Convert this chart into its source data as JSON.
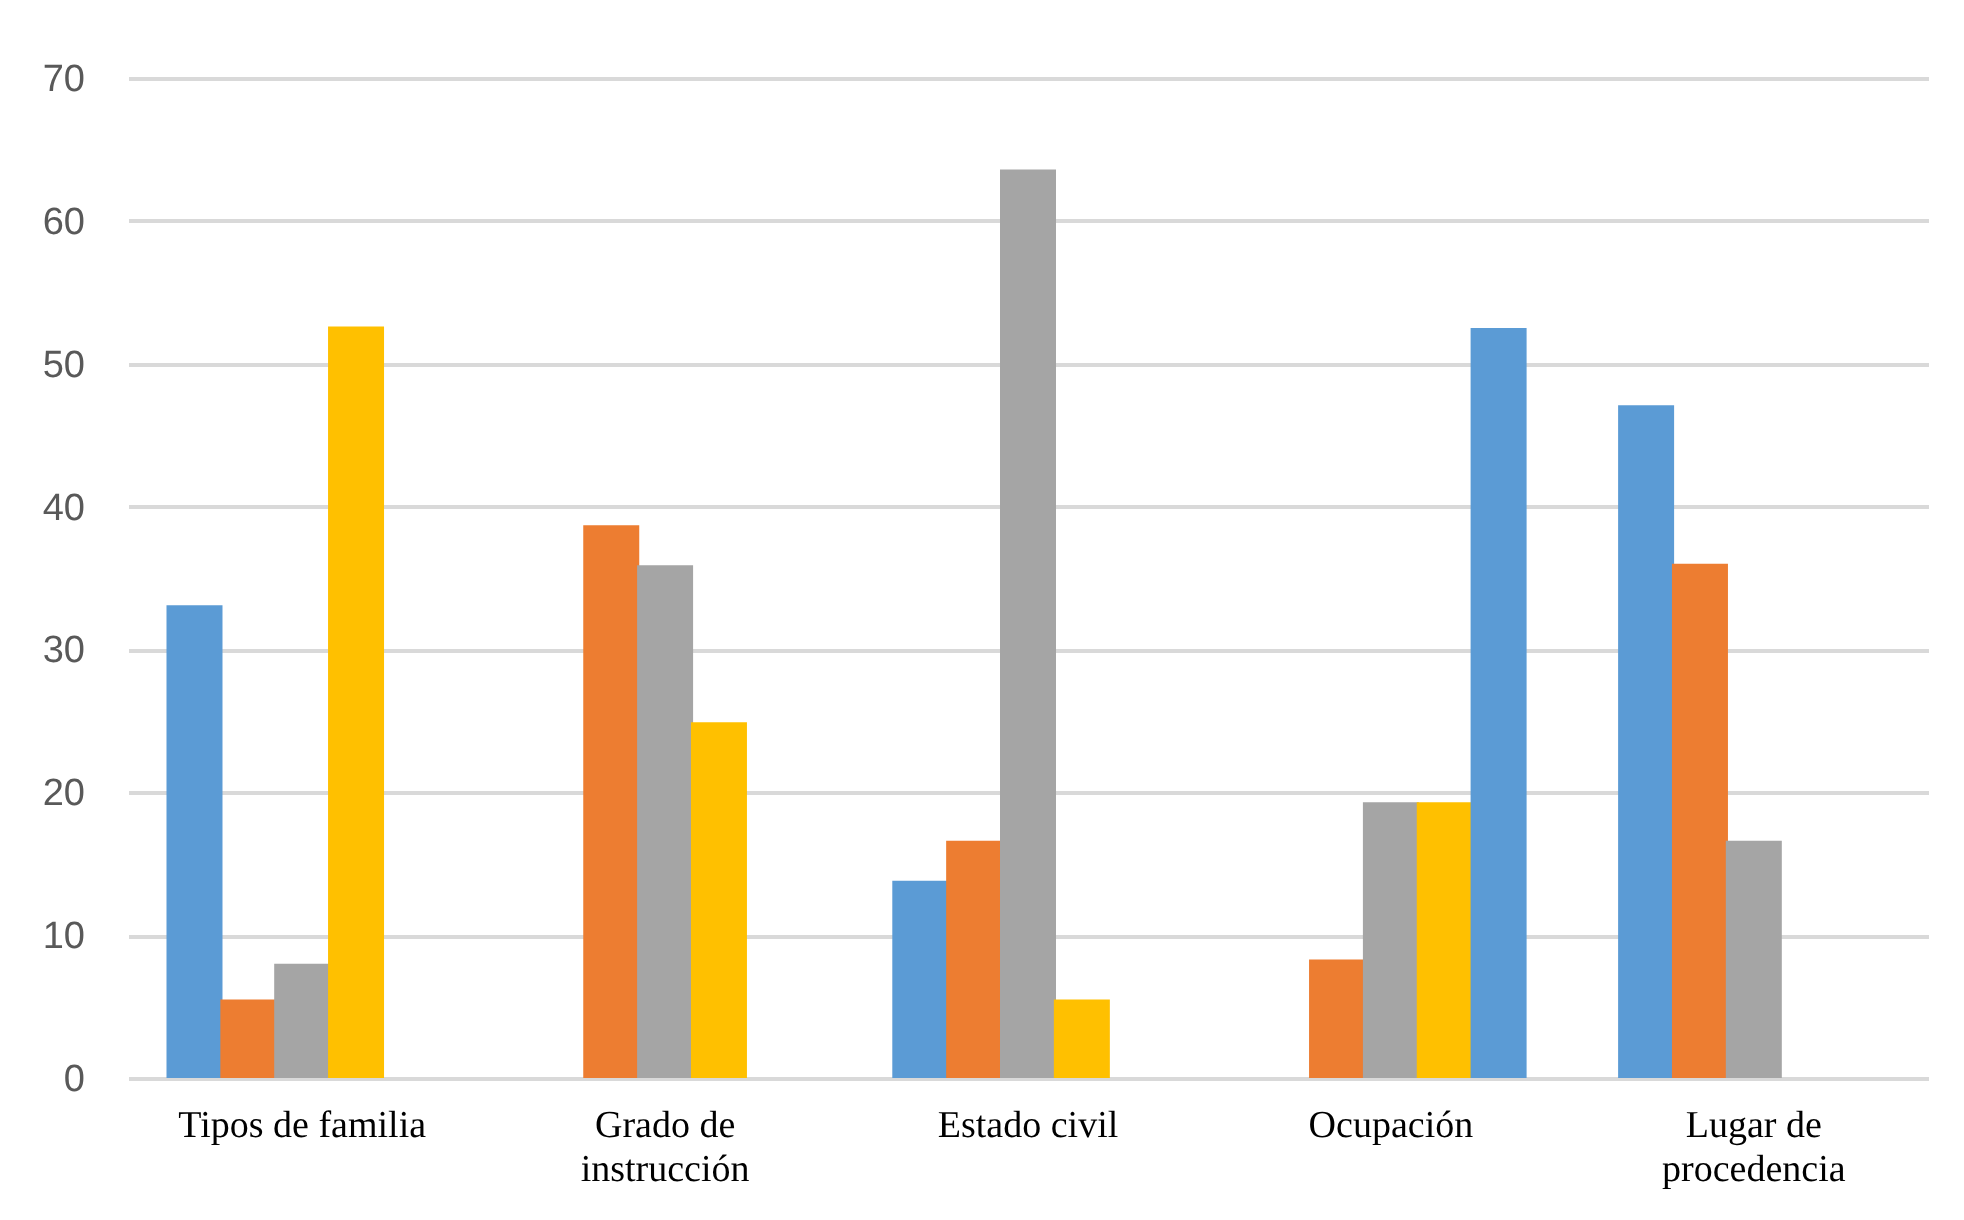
{
  "chart_data": {
    "type": "bar",
    "categories": [
      "Tipos de familia",
      "Grado de instrucción",
      "Estado civil",
      "Ocupación",
      "Lugar de procedencia"
    ],
    "series": [
      {
        "color": "#5b9bd5",
        "values": [
          33.1,
          null,
          13.8,
          null,
          47.1
        ]
      },
      {
        "color": "#ed7d31",
        "values": [
          5.5,
          38.7,
          16.6,
          8.3,
          36.0
        ]
      },
      {
        "color": "#a5a5a5",
        "values": [
          8.0,
          35.9,
          63.6,
          19.3,
          16.6
        ]
      },
      {
        "color": "#ffc000",
        "values": [
          52.6,
          24.9,
          5.5,
          19.3,
          null
        ]
      },
      {
        "color": "#5b9bd5",
        "values": [
          null,
          null,
          null,
          52.5,
          null
        ]
      }
    ],
    "ylim": [
      0,
      70
    ],
    "yticks": [
      0,
      10,
      20,
      30,
      40,
      50,
      60,
      70
    ],
    "grid": "y"
  }
}
